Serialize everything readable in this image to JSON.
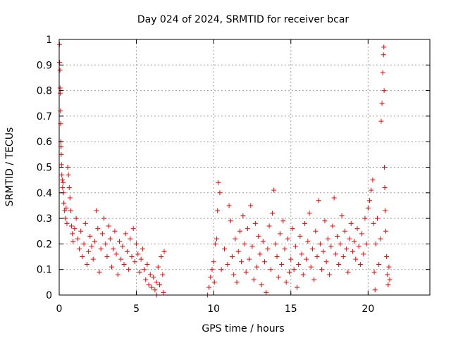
{
  "chart_data": {
    "type": "scatter",
    "title": "Day 024 of 2024, SRMTID for receiver bcar",
    "xlabel": "GPS time / hours",
    "ylabel": "SRMTID / TECUs",
    "xlim": [
      0,
      24
    ],
    "ylim": [
      0,
      1
    ],
    "xticks": [
      0,
      5,
      10,
      15,
      20
    ],
    "yticks": [
      0,
      0.1,
      0.2,
      0.3,
      0.4,
      0.5,
      0.6,
      0.7,
      0.8,
      0.9,
      1
    ],
    "xtick_labels": [
      "0",
      "5",
      "10",
      "15",
      "20"
    ],
    "ytick_labels": [
      "0",
      "0.1",
      "0.2",
      "0.3",
      "0.4",
      "0.5",
      "0.6",
      "0.7",
      "0.8",
      "0.9",
      "1"
    ],
    "grid": true,
    "marker": "plus",
    "color": "#ff0000",
    "series": [
      {
        "name": "SRMTID",
        "points": [
          [
            0.02,
            0.98
          ],
          [
            0.03,
            0.91
          ],
          [
            0.05,
            0.88
          ],
          [
            0.06,
            0.81
          ],
          [
            0.07,
            0.79
          ],
          [
            0.08,
            0.72
          ],
          [
            0.09,
            0.67
          ],
          [
            0.1,
            0.6
          ],
          [
            0.12,
            0.58
          ],
          [
            0.13,
            0.55
          ],
          [
            0.15,
            0.51
          ],
          [
            0.17,
            0.47
          ],
          [
            0.2,
            0.45
          ],
          [
            0.22,
            0.42
          ],
          [
            0.25,
            0.44
          ],
          [
            0.28,
            0.4
          ],
          [
            0.3,
            0.36
          ],
          [
            0.35,
            0.33
          ],
          [
            0.4,
            0.3
          ],
          [
            0.45,
            0.34
          ],
          [
            0.5,
            0.28
          ],
          [
            0.55,
            0.5
          ],
          [
            0.6,
            0.47
          ],
          [
            0.65,
            0.42
          ],
          [
            0.7,
            0.38
          ],
          [
            0.75,
            0.33
          ],
          [
            0.8,
            0.27
          ],
          [
            0.85,
            0.24
          ],
          [
            0.9,
            0.21
          ],
          [
            1.0,
            0.26
          ],
          [
            1.1,
            0.3
          ],
          [
            1.2,
            0.22
          ],
          [
            1.3,
            0.18
          ],
          [
            1.4,
            0.25
          ],
          [
            1.5,
            0.15
          ],
          [
            1.6,
            0.2
          ],
          [
            1.7,
            0.28
          ],
          [
            1.8,
            0.12
          ],
          [
            1.9,
            0.17
          ],
          [
            2.0,
            0.23
          ],
          [
            2.1,
            0.19
          ],
          [
            2.2,
            0.14
          ],
          [
            2.3,
            0.21
          ],
          [
            2.4,
            0.33
          ],
          [
            2.5,
            0.26
          ],
          [
            2.6,
            0.09
          ],
          [
            2.7,
            0.18
          ],
          [
            2.8,
            0.24
          ],
          [
            2.9,
            0.3
          ],
          [
            3.0,
            0.2
          ],
          [
            3.1,
            0.15
          ],
          [
            3.2,
            0.27
          ],
          [
            3.3,
            0.22
          ],
          [
            3.4,
            0.11
          ],
          [
            3.5,
            0.18
          ],
          [
            3.6,
            0.25
          ],
          [
            3.7,
            0.16
          ],
          [
            3.8,
            0.08
          ],
          [
            3.9,
            0.21
          ],
          [
            4.0,
            0.14
          ],
          [
            4.1,
            0.19
          ],
          [
            4.2,
            0.12
          ],
          [
            4.3,
            0.24
          ],
          [
            4.4,
            0.17
          ],
          [
            4.5,
            0.1
          ],
          [
            4.6,
            0.22
          ],
          [
            4.7,
            0.15
          ],
          [
            4.8,
            0.26
          ],
          [
            4.9,
            0.13
          ],
          [
            5.0,
            0.2
          ],
          [
            5.1,
            0.16
          ],
          [
            5.2,
            0.09
          ],
          [
            5.3,
            0.14
          ],
          [
            5.4,
            0.18
          ],
          [
            5.5,
            0.1
          ],
          [
            5.6,
            0.06
          ],
          [
            5.7,
            0.12
          ],
          [
            5.8,
            0.04
          ],
          [
            5.9,
            0.08
          ],
          [
            6.0,
            0.03
          ],
          [
            6.1,
            0.07
          ],
          [
            6.2,
            0.02
          ],
          [
            6.3,
            0.05
          ],
          [
            6.4,
            0.11
          ],
          [
            6.5,
            0.04
          ],
          [
            6.6,
            0.15
          ],
          [
            6.7,
            0.08
          ],
          [
            6.8,
            0.17
          ],
          [
            6.75,
            0.01
          ],
          [
            6.3,
            0.0
          ],
          [
            9.6,
            0.0
          ],
          [
            9.7,
            0.03
          ],
          [
            9.8,
            0.07
          ],
          [
            9.9,
            0.1
          ],
          [
            10.0,
            0.13
          ],
          [
            10.05,
            0.05
          ],
          [
            10.1,
            0.2
          ],
          [
            10.2,
            0.22
          ],
          [
            10.25,
            0.33
          ],
          [
            10.3,
            0.44
          ],
          [
            10.4,
            0.4
          ],
          [
            10.5,
            0.1
          ],
          [
            10.7,
            0.18
          ],
          [
            10.9,
            0.12
          ],
          [
            11.0,
            0.35
          ],
          [
            11.1,
            0.29
          ],
          [
            11.2,
            0.15
          ],
          [
            11.3,
            0.08
          ],
          [
            11.4,
            0.22
          ],
          [
            11.5,
            0.05
          ],
          [
            11.6,
            0.17
          ],
          [
            11.7,
            0.25
          ],
          [
            11.8,
            0.13
          ],
          [
            11.9,
            0.31
          ],
          [
            12.0,
            0.2
          ],
          [
            12.1,
            0.09
          ],
          [
            12.2,
            0.26
          ],
          [
            12.3,
            0.14
          ],
          [
            12.4,
            0.35
          ],
          [
            12.5,
            0.19
          ],
          [
            12.6,
            0.06
          ],
          [
            12.7,
            0.28
          ],
          [
            12.8,
            0.11
          ],
          [
            12.9,
            0.23
          ],
          [
            13.0,
            0.16
          ],
          [
            13.1,
            0.04
          ],
          [
            13.2,
            0.21
          ],
          [
            13.3,
            0.13
          ],
          [
            13.4,
            0.01
          ],
          [
            13.5,
            0.18
          ],
          [
            13.6,
            0.27
          ],
          [
            13.7,
            0.1
          ],
          [
            13.8,
            0.32
          ],
          [
            13.9,
            0.41
          ],
          [
            14.0,
            0.2
          ],
          [
            14.1,
            0.15
          ],
          [
            14.2,
            0.07
          ],
          [
            14.3,
            0.24
          ],
          [
            14.4,
            0.12
          ],
          [
            14.5,
            0.29
          ],
          [
            14.6,
            0.18
          ],
          [
            14.7,
            0.05
          ],
          [
            14.8,
            0.22
          ],
          [
            14.9,
            0.09
          ],
          [
            15.0,
            0.14
          ],
          [
            15.1,
            0.26
          ],
          [
            15.2,
            0.1
          ],
          [
            15.3,
            0.19
          ],
          [
            15.4,
            0.03
          ],
          [
            15.5,
            0.12
          ],
          [
            15.6,
            0.23
          ],
          [
            15.7,
            0.16
          ],
          [
            15.8,
            0.08
          ],
          [
            15.9,
            0.28
          ],
          [
            16.0,
            0.14
          ],
          [
            16.1,
            0.21
          ],
          [
            16.2,
            0.32
          ],
          [
            16.3,
            0.11
          ],
          [
            16.4,
            0.18
          ],
          [
            16.5,
            0.06
          ],
          [
            16.6,
            0.25
          ],
          [
            16.7,
            0.15
          ],
          [
            16.8,
            0.37
          ],
          [
            16.9,
            0.2
          ],
          [
            17.0,
            0.1
          ],
          [
            17.1,
            0.17
          ],
          [
            17.2,
            0.29
          ],
          [
            17.3,
            0.13
          ],
          [
            17.4,
            0.22
          ],
          [
            17.5,
            0.08
          ],
          [
            17.6,
            0.19
          ],
          [
            17.7,
            0.27
          ],
          [
            17.8,
            0.38
          ],
          [
            17.9,
            0.16
          ],
          [
            18.0,
            0.23
          ],
          [
            18.1,
            0.12
          ],
          [
            18.2,
            0.2
          ],
          [
            18.3,
            0.31
          ],
          [
            18.4,
            0.15
          ],
          [
            18.5,
            0.25
          ],
          [
            18.6,
            0.18
          ],
          [
            18.7,
            0.09
          ],
          [
            18.8,
            0.22
          ],
          [
            18.9,
            0.28
          ],
          [
            19.0,
            0.17
          ],
          [
            19.1,
            0.21
          ],
          [
            19.2,
            0.14
          ],
          [
            19.3,
            0.26
          ],
          [
            19.4,
            0.19
          ],
          [
            19.5,
            0.12
          ],
          [
            19.6,
            0.24
          ],
          [
            19.7,
            0.16
          ],
          [
            19.8,
            0.3
          ],
          [
            19.9,
            0.2
          ],
          [
            20.0,
            0.34
          ],
          [
            20.1,
            0.37
          ],
          [
            20.2,
            0.41
          ],
          [
            20.3,
            0.45
          ],
          [
            20.35,
            0.28
          ],
          [
            20.4,
            0.09
          ],
          [
            20.45,
            0.02
          ],
          [
            20.5,
            0.2
          ],
          [
            20.6,
            0.3
          ],
          [
            20.7,
            0.12
          ],
          [
            20.8,
            0.22
          ],
          [
            20.85,
            0.68
          ],
          [
            20.9,
            0.75
          ],
          [
            20.95,
            0.87
          ],
          [
            21.0,
            0.94
          ],
          [
            21.02,
            0.97
          ],
          [
            21.04,
            0.8
          ],
          [
            21.06,
            0.5
          ],
          [
            21.08,
            0.42
          ],
          [
            21.1,
            0.33
          ],
          [
            21.15,
            0.25
          ],
          [
            21.2,
            0.15
          ],
          [
            21.25,
            0.08
          ],
          [
            21.3,
            0.04
          ],
          [
            21.35,
            0.11
          ],
          [
            21.4,
            0.06
          ]
        ]
      }
    ]
  }
}
